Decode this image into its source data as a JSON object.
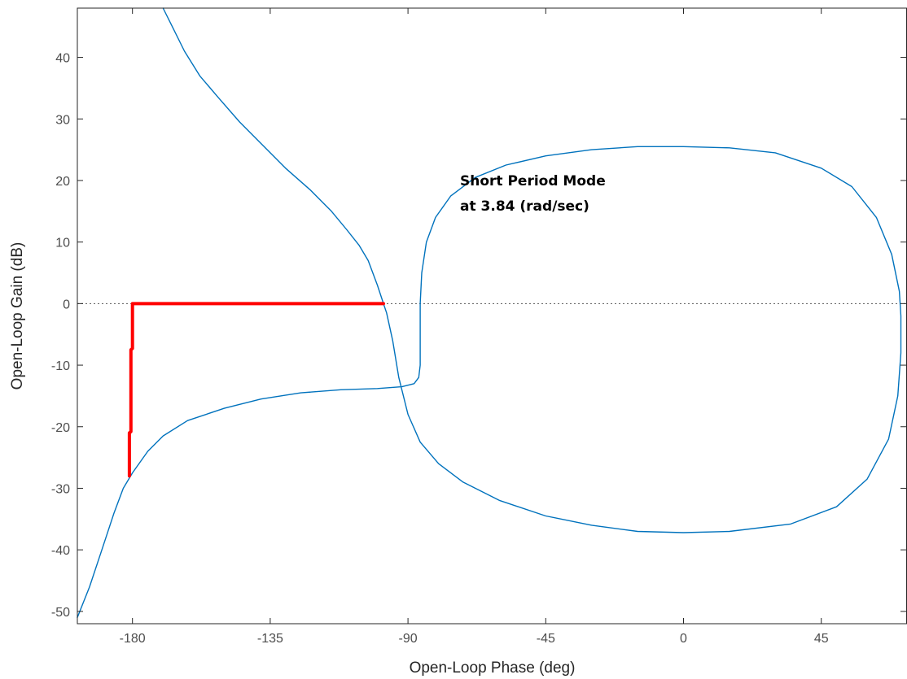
{
  "chart_data": {
    "type": "line",
    "title": "",
    "xlabel": "Open-Loop Phase (deg)",
    "ylabel": "Open-Loop Gain (dB)",
    "xlim": [
      -198,
      73
    ],
    "ylim": [
      -52,
      48
    ],
    "x_ticks": [
      -180,
      -135,
      -90,
      -45,
      0,
      45
    ],
    "x_tick_labels": [
      "-180",
      "-135",
      "-90",
      "-45",
      "0",
      "45"
    ],
    "y_ticks": [
      -50,
      -40,
      -30,
      -20,
      -10,
      0,
      10,
      20,
      30,
      40
    ],
    "y_tick_labels": [
      "-50",
      "-40",
      "-30",
      "-20",
      "-10",
      "0",
      "10",
      "20",
      "30",
      "40"
    ],
    "grid": false,
    "reference_line": {
      "y": 0,
      "style": "dotted"
    },
    "annotation": {
      "lines": [
        "Short Period Mode",
        "at 3.84 (rad/sec)"
      ],
      "x": -73,
      "y": 20
    },
    "series": [
      {
        "kind": "curve",
        "color": "#0072bd",
        "points": [
          [
            -198,
            -51
          ],
          [
            -194,
            -46
          ],
          [
            -190,
            -40
          ],
          [
            -186,
            -34
          ],
          [
            -183,
            -30
          ],
          [
            -180,
            -27.5
          ],
          [
            -175,
            -24
          ],
          [
            -170,
            -21.5
          ],
          [
            -162,
            -19
          ],
          [
            -150,
            -17
          ],
          [
            -138,
            -15.5
          ],
          [
            -125,
            -14.5
          ],
          [
            -112,
            -14
          ],
          [
            -100,
            -13.8
          ],
          [
            -92,
            -13.5
          ],
          [
            -88,
            -13
          ],
          [
            -86.5,
            -12
          ],
          [
            -86,
            -10
          ],
          [
            -86,
            -5
          ],
          [
            -86,
            0
          ],
          [
            -85.5,
            5
          ],
          [
            -84,
            10
          ],
          [
            -81,
            14
          ],
          [
            -76,
            17.5
          ],
          [
            -68,
            20.5
          ],
          [
            -58,
            22.5
          ],
          [
            -45,
            24
          ],
          [
            -30,
            25
          ],
          [
            -15,
            25.5
          ],
          [
            0,
            25.5
          ],
          [
            15,
            25.3
          ],
          [
            30,
            24.5
          ],
          [
            45,
            22
          ],
          [
            55,
            19
          ],
          [
            63,
            14
          ],
          [
            68,
            8
          ],
          [
            70.5,
            2
          ],
          [
            71,
            -2
          ],
          [
            71,
            -8
          ],
          [
            70,
            -15
          ],
          [
            67,
            -22
          ],
          [
            60,
            -28.5
          ],
          [
            50,
            -33
          ],
          [
            35,
            -35.8
          ],
          [
            15,
            -37
          ],
          [
            0,
            -37.2
          ],
          [
            -15,
            -37
          ],
          [
            -30,
            -36
          ],
          [
            -45,
            -34.5
          ],
          [
            -60,
            -32
          ],
          [
            -72,
            -29
          ],
          [
            -80,
            -26
          ],
          [
            -86,
            -22.5
          ],
          [
            -90,
            -18
          ],
          [
            -93,
            -12
          ],
          [
            -95,
            -6
          ],
          [
            -97,
            -1.5
          ],
          [
            -98,
            0
          ],
          [
            -100,
            3
          ],
          [
            -103,
            7
          ],
          [
            -106,
            9.5
          ],
          [
            -110,
            12
          ],
          [
            -115,
            15
          ],
          [
            -122,
            18.5
          ],
          [
            -130,
            22
          ],
          [
            -138,
            26
          ],
          [
            -145,
            29.5
          ],
          [
            -152,
            33.5
          ],
          [
            -158,
            37
          ],
          [
            -163,
            41
          ],
          [
            -167,
            45
          ],
          [
            -170,
            48
          ]
        ]
      },
      {
        "kind": "margin-indicator",
        "color": "#ff0000",
        "points": [
          [
            -181,
            -28
          ],
          [
            -181,
            -21
          ],
          [
            -180.5,
            -20.8
          ],
          [
            -180.5,
            -7.5
          ],
          [
            -180,
            -7.3
          ],
          [
            -180,
            0
          ],
          [
            -98,
            0
          ]
        ]
      }
    ]
  }
}
